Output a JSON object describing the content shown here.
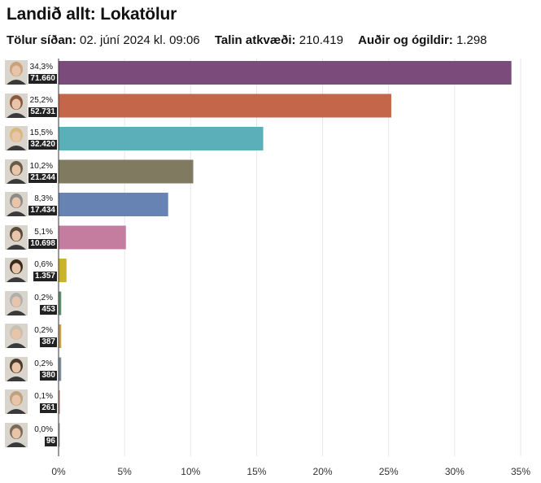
{
  "header": {
    "title": "Landið allt: Lokatölur",
    "updated_label": "Tölur síðan:",
    "updated_value": "02. júní 2024 kl. 09:06",
    "counted_label": "Talin atkvæði:",
    "counted_value": "210.419",
    "blank_label": "Auðir og ógildir:",
    "blank_value": "1.298"
  },
  "chart_data": {
    "type": "bar",
    "orientation": "horizontal",
    "categories": [
      "",
      "",
      "",
      "",
      "",
      "",
      "",
      "",
      "",
      "",
      "",
      ""
    ],
    "values": [
      34.3,
      25.2,
      15.5,
      10.2,
      8.3,
      5.1,
      0.6,
      0.2,
      0.2,
      0.2,
      0.1,
      0.0
    ],
    "percent_labels": [
      "34,3%",
      "25,2%",
      "15,5%",
      "10,2%",
      "8,3%",
      "5,1%",
      "0,6%",
      "0,2%",
      "0,2%",
      "0,2%",
      "0,1%",
      "0,0%"
    ],
    "vote_labels": [
      "71.660",
      "52.731",
      "32.420",
      "21.244",
      "17.434",
      "10.698",
      "1.357",
      "453",
      "387",
      "380",
      "261",
      "96"
    ],
    "colors": [
      "#7b4b7c",
      "#c4664a",
      "#5aafb8",
      "#807b60",
      "#6783b4",
      "#c47c9f",
      "#c9b32a",
      "#5e8b6e",
      "#c5a24a",
      "#7d8f99",
      "#b98a82",
      "#9a9a9a"
    ],
    "avatar_colors": [
      "#c9a27a",
      "#8a5a3a",
      "#d9b87a",
      "#6a5a4a",
      "#8a8a8a",
      "#5a4a3a",
      "#3a2a1a",
      "#b0b0b0",
      "#c8c0b0",
      "#4a3a2a",
      "#c0a080",
      "#7a6a5a"
    ],
    "xticks": [
      "0%",
      "5%",
      "10%",
      "15%",
      "20%",
      "25%",
      "30%",
      "35%"
    ],
    "xtick_values": [
      0,
      5,
      10,
      15,
      20,
      25,
      30,
      35
    ],
    "xlim": [
      0,
      35
    ],
    "grid": true,
    "xlabel": "",
    "ylabel": ""
  }
}
